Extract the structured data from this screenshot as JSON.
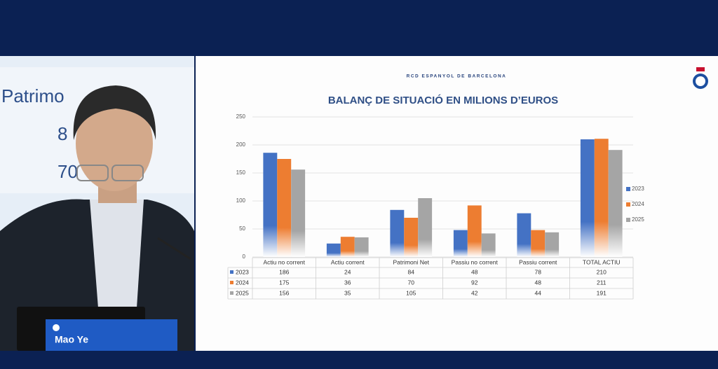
{
  "background_screen": {
    "texts": [
      "Patrimo",
      "8",
      "70"
    ]
  },
  "overlay": {
    "speaker": "Mao Ye"
  },
  "slide": {
    "organization": "RCD ESPANYOL DE BARCELONA"
  },
  "chart_data": {
    "type": "bar",
    "title": "BALANÇ DE SITUACIÓ EN MILIONS D’EUROS",
    "categories": [
      "Actiu no corrent",
      "Actiu corrent",
      "Patrimoni Net",
      "Passiu no corrent",
      "Passiu corrent",
      "TOTAL ACTIU"
    ],
    "series": [
      {
        "name": "2023",
        "color": "#4472c4",
        "values": [
          186,
          24,
          84,
          48,
          78,
          210
        ]
      },
      {
        "name": "2024",
        "color": "#ed7d31",
        "values": [
          175,
          36,
          70,
          92,
          48,
          211
        ]
      },
      {
        "name": "2025",
        "color": "#a5a5a5",
        "values": [
          156,
          35,
          105,
          42,
          44,
          191
        ]
      }
    ],
    "ylim": [
      0,
      250
    ],
    "yticks": [
      0,
      50,
      100,
      150,
      200,
      250
    ],
    "grid": true,
    "legend": "right",
    "data_table": true
  }
}
